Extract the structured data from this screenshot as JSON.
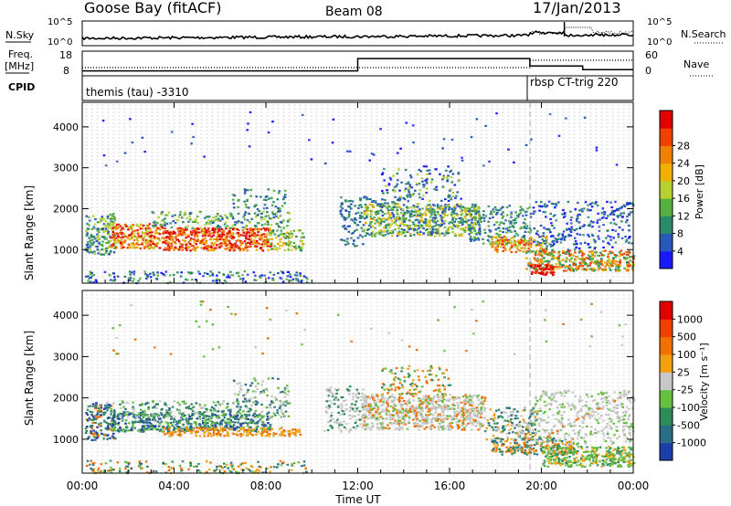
{
  "header": {
    "station": "Goose Bay (fitACF)",
    "beam": "Beam 08",
    "date": "17/Jan/2013"
  },
  "chart_data": [
    {
      "type": "line",
      "panel": "noise",
      "left_label": "N.Sky",
      "right_label": "N.Search",
      "y_ticks_left": [
        "10^5",
        "10^0"
      ],
      "y_ticks_right": [
        "10^5",
        "10^0"
      ],
      "series": [
        {
          "name": "N.Sky",
          "style": "solid"
        },
        {
          "name": "N.Search",
          "style": "dotted"
        }
      ]
    },
    {
      "type": "line",
      "panel": "frequency",
      "left_label": [
        "Freq.",
        "[MHz]"
      ],
      "right_label": "Nave",
      "y_ticks_left": [
        "18",
        "8"
      ],
      "y_ticks_right": [
        "60",
        "0"
      ],
      "series": [
        {
          "name": "Freq.",
          "style": "solid",
          "x_hours": [
            0,
            12,
            12,
            19.5,
            19.5,
            21.8,
            21.8,
            24
          ],
          "values_mhz": [
            10,
            10,
            15,
            15,
            12,
            12,
            10.5,
            10.5
          ]
        },
        {
          "name": "Nave",
          "style": "dotted"
        }
      ]
    },
    {
      "type": "table",
      "panel": "cpid",
      "label": "CPID",
      "segments": [
        {
          "text": "themis (tau) -3310",
          "start_hour": 0,
          "end_hour": 19.5
        },
        {
          "text": "rbsp CT-trig 220",
          "start_hour": 19.5,
          "end_hour": 24
        }
      ]
    },
    {
      "type": "heatmap",
      "panel": "power",
      "ylabel": "Slant Range [km]",
      "y_ticks": [
        1000,
        2000,
        3000,
        4000
      ],
      "ylim": [
        180,
        4600
      ],
      "xlim_hours": [
        0,
        24
      ],
      "colorbar": {
        "label": "Power [dB]",
        "ticks": [
          "4",
          "8",
          "12",
          "16",
          "20",
          "24",
          "28"
        ],
        "colors": [
          "#1a1aff",
          "#2858b8",
          "#2a8a6a",
          "#55b040",
          "#b8d030",
          "#f0b000",
          "#f08000",
          "#f04000",
          "#e00000"
        ]
      }
    },
    {
      "type": "heatmap",
      "panel": "velocity",
      "ylabel": "Slant Range [km]",
      "y_ticks": [
        1000,
        2000,
        3000,
        4000
      ],
      "ylim": [
        180,
        4600
      ],
      "xlim_hours": [
        0,
        24
      ],
      "xlabel": "Time UT",
      "x_ticks": [
        "00:00",
        "04:00",
        "08:00",
        "12:00",
        "16:00",
        "20:00",
        "00:00"
      ],
      "colorbar": {
        "label": "Velocity [m s⁻¹]",
        "ticks": [
          "1000",
          "500",
          "100",
          "25",
          "-25",
          "-100",
          "-500",
          "-1000"
        ],
        "colors": [
          "#1c3ea8",
          "#2a6e86",
          "#2e8b5a",
          "#66c040",
          "#c8c8c8",
          "#f2a010",
          "#f07000",
          "#ef4000",
          "#e00000"
        ]
      }
    }
  ]
}
